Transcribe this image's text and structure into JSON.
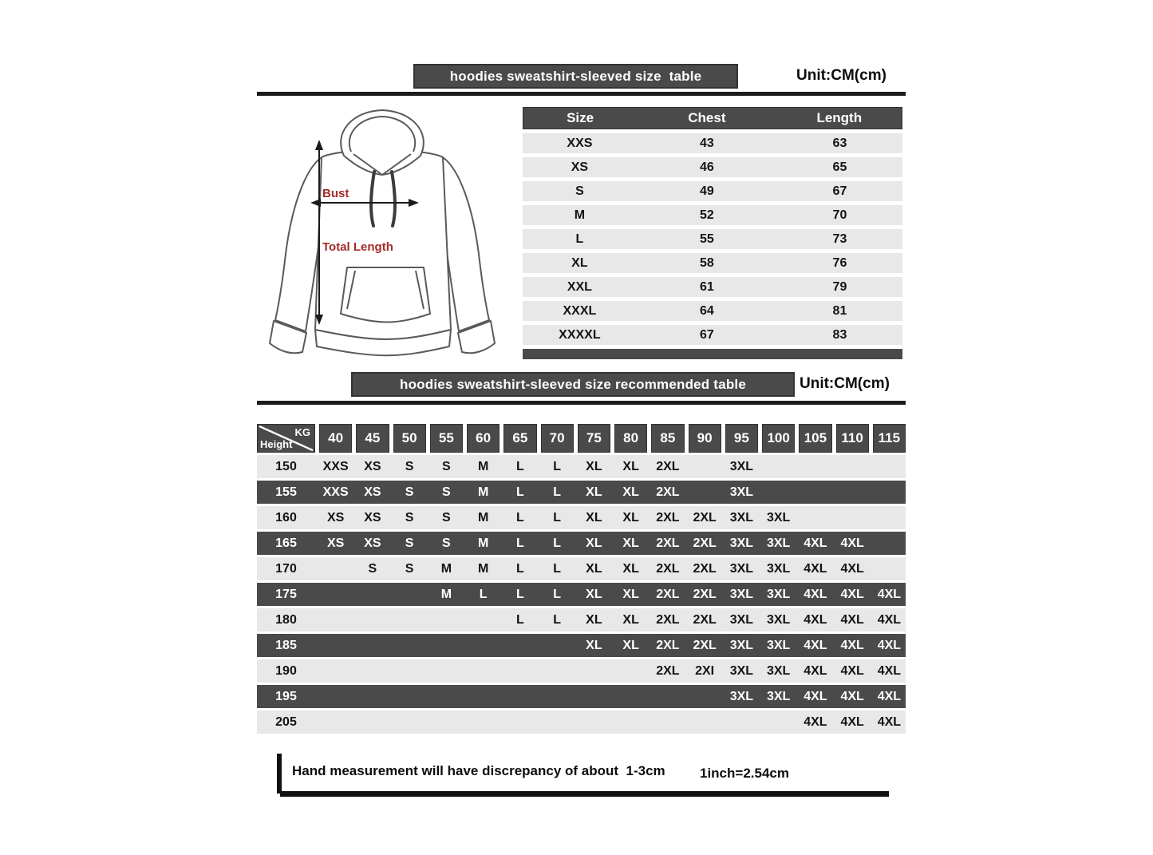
{
  "colors": {
    "dark_bar": "#4a4a4a",
    "bar_border": "#333333",
    "light_row": "#e8e8e8",
    "rule": "#1c1c1c",
    "label_red": "#a52a2a"
  },
  "size_section": {
    "title": "hoodies sweatshirt-sleeved size  table",
    "unit": "Unit:CM(cm)",
    "columns": [
      "Size",
      "Chest",
      "Length"
    ],
    "rows": [
      {
        "size": "XXS",
        "chest": "43",
        "length": "63"
      },
      {
        "size": "XS",
        "chest": "46",
        "length": "65"
      },
      {
        "size": "S",
        "chest": "49",
        "length": "67"
      },
      {
        "size": "M",
        "chest": "52",
        "length": "70"
      },
      {
        "size": "L",
        "chest": "55",
        "length": "73"
      },
      {
        "size": "XL",
        "chest": "58",
        "length": "76"
      },
      {
        "size": "XXL",
        "chest": "61",
        "length": "79"
      },
      {
        "size": "XXXL",
        "chest": "64",
        "length": "81"
      },
      {
        "size": "XXXXL",
        "chest": "67",
        "length": "83"
      }
    ]
  },
  "diagram": {
    "bust_label": "Bust",
    "total_length_label": "Total Length"
  },
  "recommended_section": {
    "title": "hoodies sweatshirt-sleeved size recommended table",
    "unit": "Unit:CM(cm)",
    "corner_top": "KG",
    "corner_bottom": "Height",
    "weights": [
      "40",
      "45",
      "50",
      "55",
      "60",
      "65",
      "70",
      "75",
      "80",
      "85",
      "90",
      "95",
      "100",
      "105",
      "110",
      "115"
    ],
    "rows": [
      {
        "height": "150",
        "cells": [
          "XXS",
          "XS",
          "S",
          "S",
          "M",
          "L",
          "L",
          "XL",
          "XL",
          "2XL",
          "",
          "3XL",
          "",
          "",
          "",
          ""
        ]
      },
      {
        "height": "155",
        "cells": [
          "XXS",
          "XS",
          "S",
          "S",
          "M",
          "L",
          "L",
          "XL",
          "XL",
          "2XL",
          "",
          "3XL",
          "",
          "",
          "",
          ""
        ]
      },
      {
        "height": "160",
        "cells": [
          "XS",
          "XS",
          "S",
          "S",
          "M",
          "L",
          "L",
          "XL",
          "XL",
          "2XL",
          "2XL",
          "3XL",
          "3XL",
          "",
          "",
          ""
        ]
      },
      {
        "height": "165",
        "cells": [
          "XS",
          "XS",
          "S",
          "S",
          "M",
          "L",
          "L",
          "XL",
          "XL",
          "2XL",
          "2XL",
          "3XL",
          "3XL",
          "4XL",
          "4XL",
          ""
        ]
      },
      {
        "height": "170",
        "cells": [
          "",
          "S",
          "S",
          "M",
          "M",
          "L",
          "L",
          "XL",
          "XL",
          "2XL",
          "2XL",
          "3XL",
          "3XL",
          "4XL",
          "4XL",
          ""
        ]
      },
      {
        "height": "175",
        "cells": [
          "",
          "",
          "",
          "M",
          "L",
          "L",
          "L",
          "XL",
          "XL",
          "2XL",
          "2XL",
          "3XL",
          "3XL",
          "4XL",
          "4XL",
          "4XL"
        ]
      },
      {
        "height": "180",
        "cells": [
          "",
          "",
          "",
          "",
          "",
          "L",
          "L",
          "XL",
          "XL",
          "2XL",
          "2XL",
          "3XL",
          "3XL",
          "4XL",
          "4XL",
          "4XL"
        ]
      },
      {
        "height": "185",
        "cells": [
          "",
          "",
          "",
          "",
          "",
          "",
          "",
          "XL",
          "XL",
          "2XL",
          "2XL",
          "3XL",
          "3XL",
          "4XL",
          "4XL",
          "4XL"
        ]
      },
      {
        "height": "190",
        "cells": [
          "",
          "",
          "",
          "",
          "",
          "",
          "",
          "",
          "",
          "2XL",
          "2XI",
          "3XL",
          "3XL",
          "4XL",
          "4XL",
          "4XL"
        ]
      },
      {
        "height": "195",
        "cells": [
          "",
          "",
          "",
          "",
          "",
          "",
          "",
          "",
          "",
          "",
          "",
          "3XL",
          "3XL",
          "4XL",
          "4XL",
          "4XL"
        ]
      },
      {
        "height": "205",
        "cells": [
          "",
          "",
          "",
          "",
          "",
          "",
          "",
          "",
          "",
          "",
          "",
          "",
          "",
          "4XL",
          "4XL",
          "4XL"
        ]
      }
    ]
  },
  "footer": {
    "note": "Hand measurement will have discrepancy of about  1-3cm",
    "conversion": "1inch=2.54cm"
  }
}
